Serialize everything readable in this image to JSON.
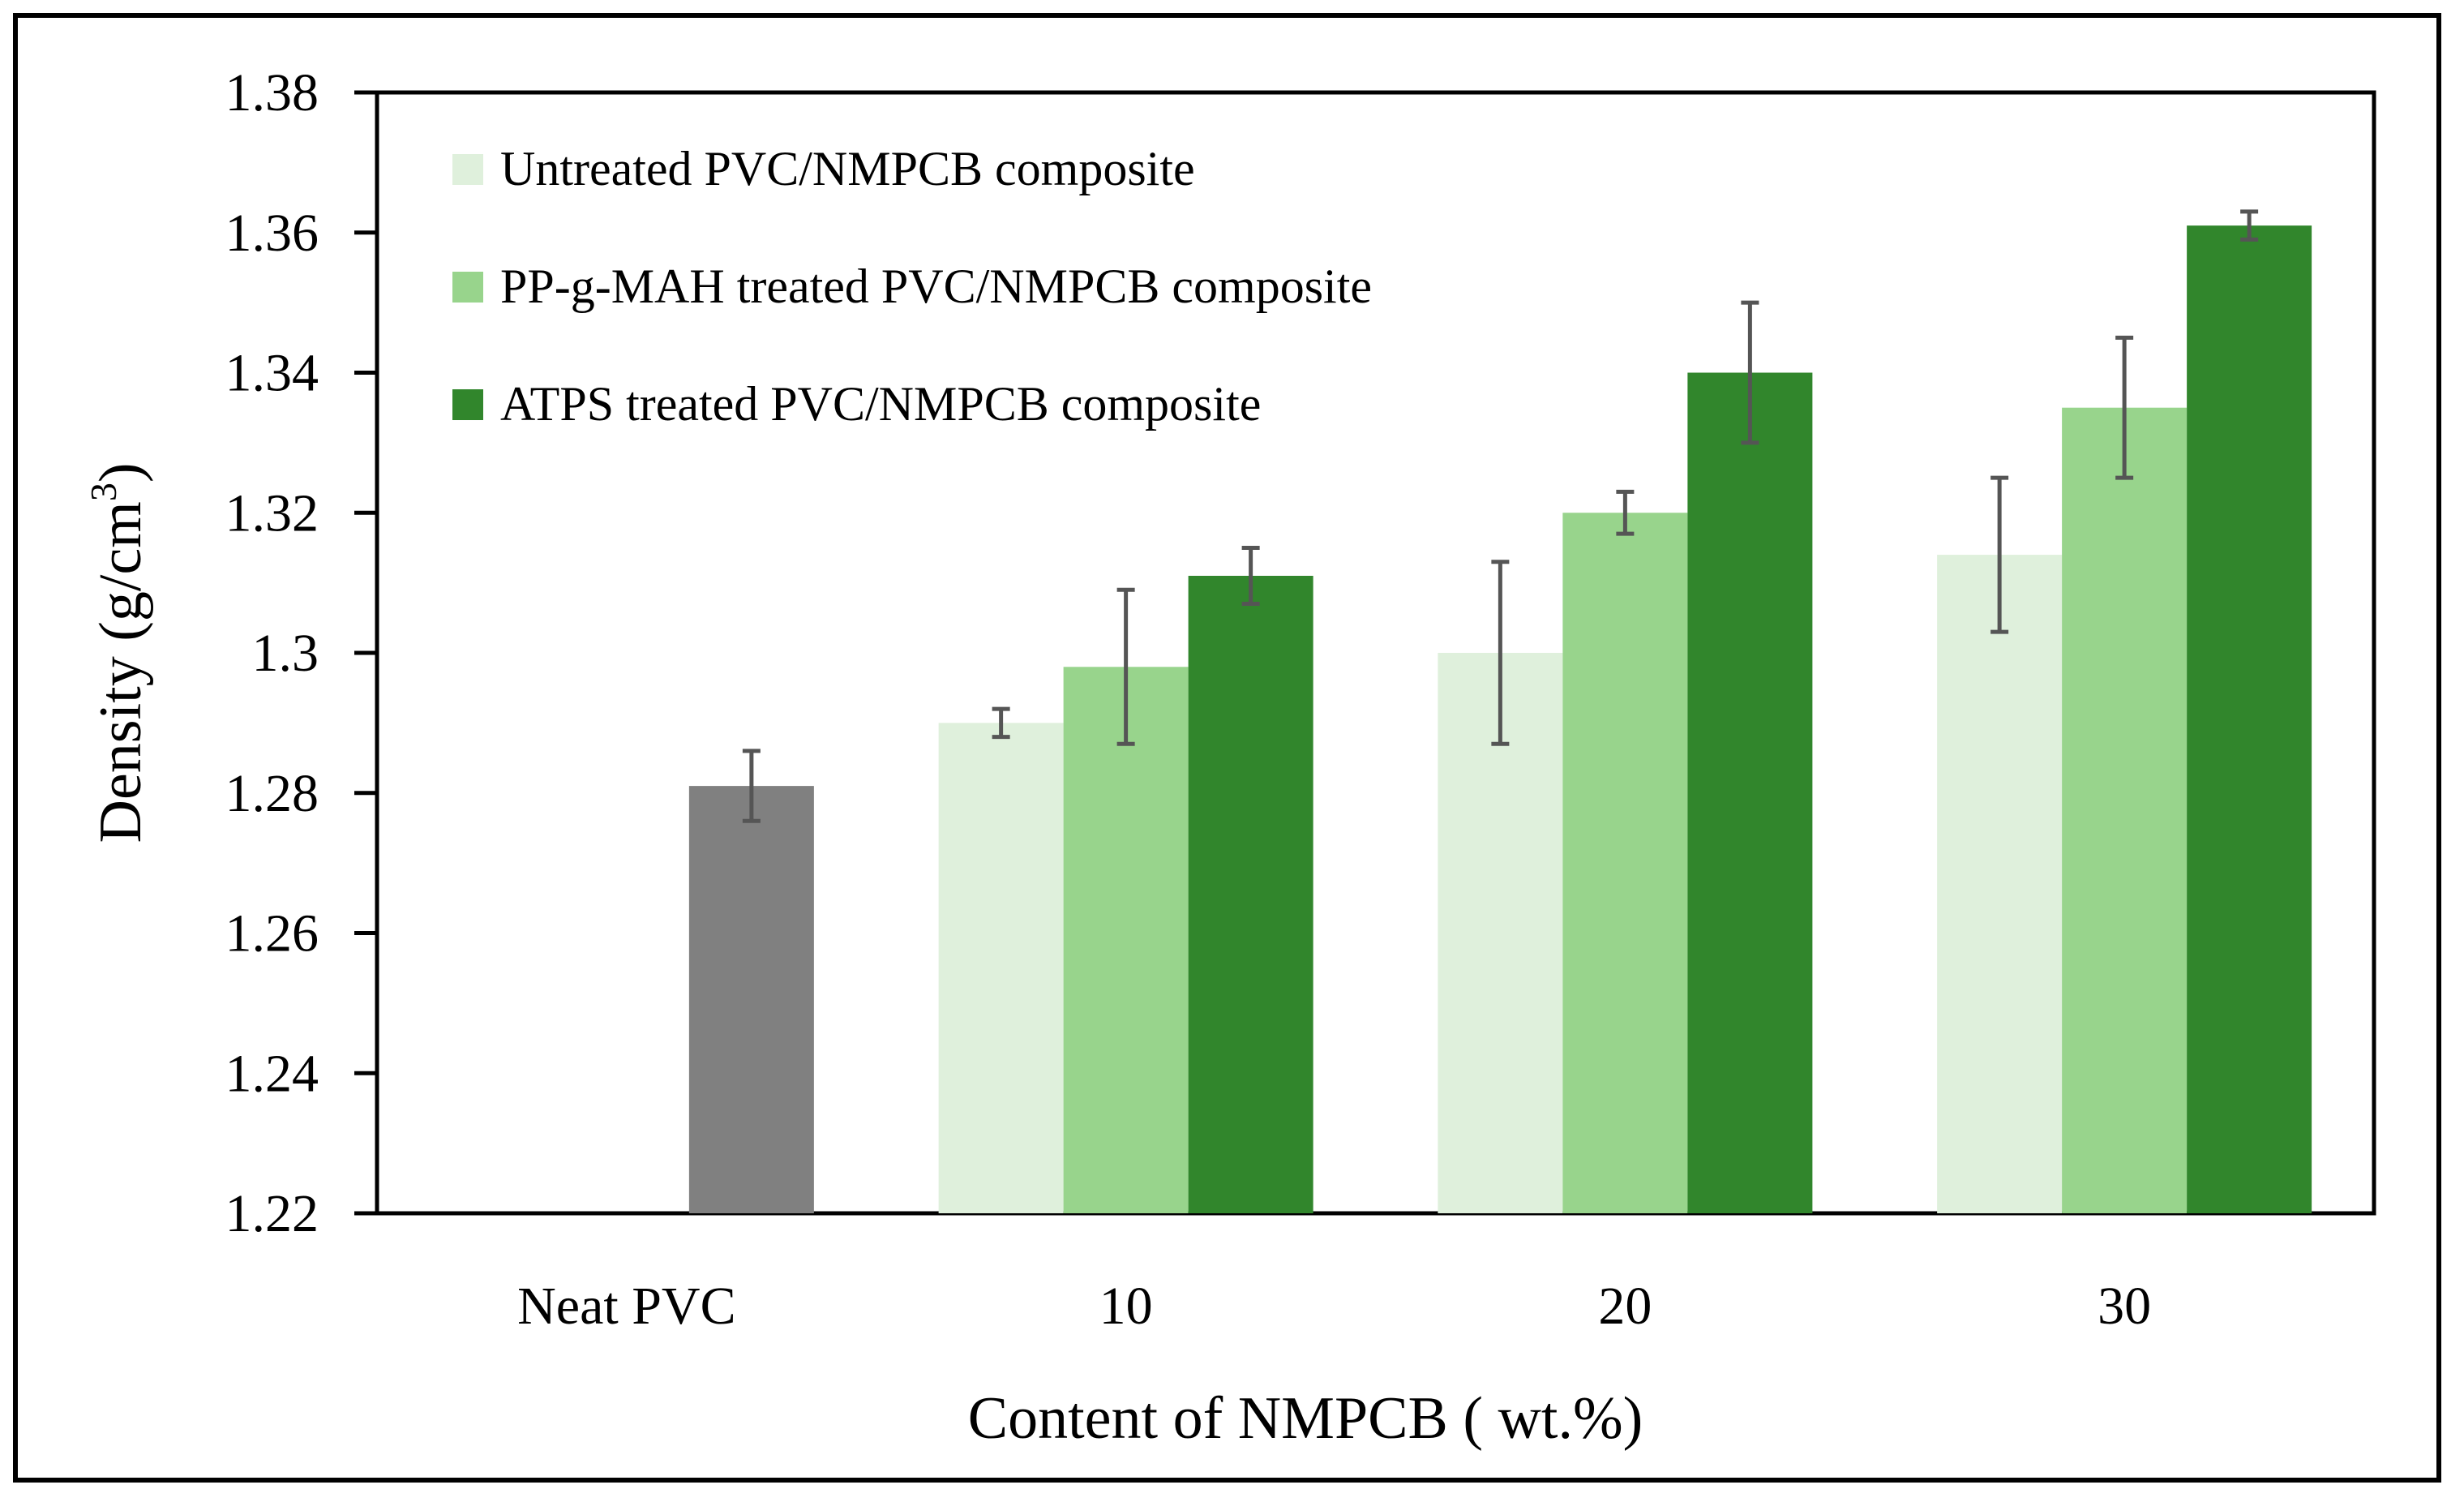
{
  "chart_data": {
    "type": "bar",
    "title": "",
    "xlabel": "Content of NMPCB ( wt.%)",
    "ylabel": "Density (g/cm",
    "ylabel_superscript": "3",
    "ylabel_close": ")",
    "ylim": [
      1.22,
      1.38
    ],
    "yticks": [
      "1.22",
      "1.24",
      "1.26",
      "1.28",
      "1.3",
      "1.32",
      "1.34",
      "1.36",
      "1.38"
    ],
    "categories": [
      "Neat PVC",
      "10",
      "20",
      "30"
    ],
    "legend_position": "top-left",
    "grid": false,
    "neat": {
      "name": "Neat PVC",
      "color": "#808080",
      "value": 1.281,
      "error": 0.005
    },
    "series": [
      {
        "name": "Untreated PVC/NMPCB composite",
        "color": "#dff0dc",
        "values": [
          null,
          1.29,
          1.3,
          1.314
        ],
        "errors": [
          null,
          0.002,
          0.013,
          0.011
        ]
      },
      {
        "name": "PP-g-MAH treated PVC/NMPCB composite",
        "color": "#98d48c",
        "values": [
          null,
          1.298,
          1.32,
          1.335
        ],
        "errors": [
          null,
          0.011,
          0.003,
          0.01
        ]
      },
      {
        "name": "ATPS treated PVC/NMPCB composite",
        "color": "#31862c",
        "values": [
          null,
          1.311,
          1.34,
          1.361
        ],
        "errors": [
          null,
          0.004,
          0.01,
          0.002
        ]
      }
    ],
    "error_bar_color": "#555555",
    "axis_color": "#000000"
  }
}
